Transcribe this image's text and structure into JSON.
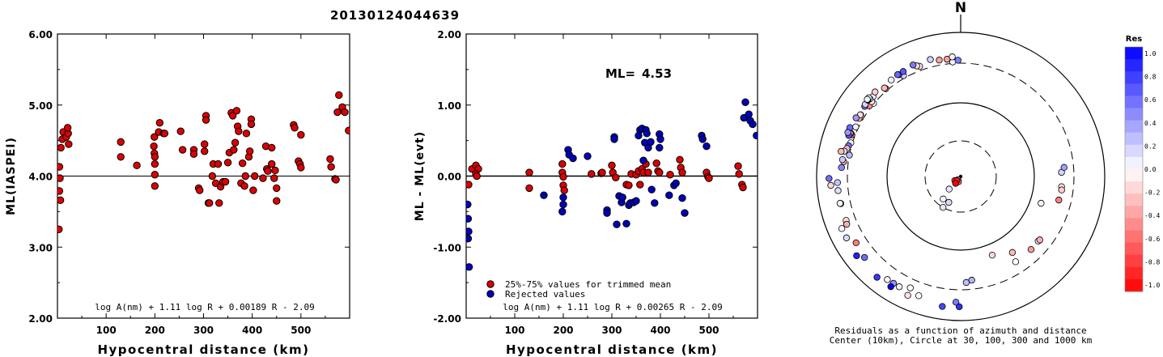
{
  "title": "20130124044639",
  "chart_data": [
    {
      "type": "scatter",
      "xlabel": "Hypocentral distance (km)",
      "ylabel": "ML(IASPEI)",
      "xlim": [
        0,
        600
      ],
      "ylim": [
        2.0,
        6.0
      ],
      "xticks": [
        "100",
        "200",
        "300",
        "400",
        "500"
      ],
      "yticks": [
        "2.00",
        "3.00",
        "4.00",
        "5.00",
        "6.00"
      ],
      "formula": "log A(nm) + 1.11 log R + 0.00189 R - 2.09",
      "series": [
        {
          "color": "#dd0000",
          "points": [
            [
              3,
              3.25
            ],
            [
              4,
              4.13
            ],
            [
              5,
              3.97
            ],
            [
              4,
              3.79
            ],
            [
              6,
              3.66
            ],
            [
              7,
              4.4
            ],
            [
              10,
              4.52
            ],
            [
              12,
              4.62
            ],
            [
              18,
              4.55
            ],
            [
              22,
              4.6
            ],
            [
              21,
              4.68
            ],
            [
              23,
              4.45
            ],
            [
              130,
              4.48
            ],
            [
              130,
              4.27
            ],
            [
              163,
              4.15
            ],
            [
              199,
              4.55
            ],
            [
              198,
              4.42
            ],
            [
              199,
              4.32
            ],
            [
              200,
              4.27
            ],
            [
              200,
              4.17
            ],
            [
              200,
              4.02
            ],
            [
              200,
              3.86
            ],
            [
              208,
              4.62
            ],
            [
              210,
              4.75
            ],
            [
              218,
              4.6
            ],
            [
              220,
              4.6
            ],
            [
              253,
              4.63
            ],
            [
              257,
              4.37
            ],
            [
              280,
              4.37
            ],
            [
              280,
              4.31
            ],
            [
              290,
              3.83
            ],
            [
              292,
              3.8
            ],
            [
              302,
              4.45
            ],
            [
              302,
              4.35
            ],
            [
              305,
              4.85
            ],
            [
              305,
              4.79
            ],
            [
              310,
              3.62
            ],
            [
              312,
              3.62
            ],
            [
              318,
              4.0
            ],
            [
              320,
              4.17
            ],
            [
              325,
              3.9
            ],
            [
              330,
              4.17
            ],
            [
              332,
              3.62
            ],
            [
              335,
              3.85
            ],
            [
              340,
              3.92
            ],
            [
              345,
              3.92
            ],
            [
              350,
              4.19
            ],
            [
              353,
              4.33
            ],
            [
              357,
              4.89
            ],
            [
              360,
              4.85
            ],
            [
              362,
              4.37
            ],
            [
              365,
              4.47
            ],
            [
              368,
              4.92
            ],
            [
              370,
              4.7
            ],
            [
              372,
              4.63
            ],
            [
              377,
              3.9
            ],
            [
              380,
              4.18
            ],
            [
              384,
              3.86
            ],
            [
              386,
              4.0
            ],
            [
              388,
              4.6
            ],
            [
              393,
              4.27
            ],
            [
              395,
              4.35
            ],
            [
              398,
              4.8
            ],
            [
              398,
              4.73
            ],
            [
              402,
              3.8
            ],
            [
              405,
              4.0
            ],
            [
              422,
              3.97
            ],
            [
              428,
              4.42
            ],
            [
              430,
              4.1
            ],
            [
              432,
              4.07
            ],
            [
              440,
              4.17
            ],
            [
              440,
              4.4
            ],
            [
              445,
              3.97
            ],
            [
              447,
              4.08
            ],
            [
              450,
              3.83
            ],
            [
              450,
              3.65
            ],
            [
              485,
              4.72
            ],
            [
              487,
              4.68
            ],
            [
              495,
              4.21
            ],
            [
              498,
              4.17
            ],
            [
              500,
              4.12
            ],
            [
              500,
              4.58
            ],
            [
              560,
              4.24
            ],
            [
              562,
              4.13
            ],
            [
              570,
              3.96
            ],
            [
              572,
              3.95
            ],
            [
              575,
              4.9
            ],
            [
              578,
              5.14
            ],
            [
              585,
              4.97
            ],
            [
              590,
              4.9
            ],
            [
              598,
              4.64
            ]
          ]
        }
      ]
    },
    {
      "type": "scatter",
      "xlabel": "Hypocentral distance (km)",
      "ylabel": "ML - ML(evt)",
      "xlim": [
        0,
        600
      ],
      "ylim": [
        -2.0,
        2.0
      ],
      "xticks": [
        "100",
        "200",
        "300",
        "400",
        "500"
      ],
      "yticks": [
        "-2.00",
        "-1.00",
        "0.00",
        "1.00",
        "2.00"
      ],
      "ml_label": "ML=",
      "ml_value": "4.53",
      "formula": "log A(nm) + 1.11 log R + 0.00265 R - 2.09",
      "legend": [
        {
          "label": "25%-75% values for trimmed mean",
          "color": "#dd0000"
        },
        {
          "label": "Rejected values",
          "color": "#0000bb"
        }
      ],
      "series": [
        {
          "color": "#dd0000",
          "points": [
            [
              5,
              -0.12
            ],
            [
              12,
              0.1
            ],
            [
              20,
              0.15
            ],
            [
              25,
              0.1
            ],
            [
              20,
              0.03
            ],
            [
              22,
              0.0
            ],
            [
              130,
              0.05
            ],
            [
              130,
              -0.17
            ],
            [
              198,
              0.17
            ],
            [
              198,
              0.05
            ],
            [
              200,
              -0.01
            ],
            [
              200,
              -0.13
            ],
            [
              202,
              -0.2
            ],
            [
              258,
              0.03
            ],
            [
              278,
              0.04
            ],
            [
              280,
              0.05
            ],
            [
              300,
              0.15
            ],
            [
              302,
              0.05
            ],
            [
              308,
              -0.02
            ],
            [
              330,
              -0.12
            ],
            [
              335,
              -0.13
            ],
            [
              340,
              0.03
            ],
            [
              350,
              0.02
            ],
            [
              355,
              0.07
            ],
            [
              358,
              -0.12
            ],
            [
              362,
              0.1
            ],
            [
              365,
              0.05
            ],
            [
              370,
              0.17
            ],
            [
              375,
              0.05
            ],
            [
              392,
              0.18
            ],
            [
              395,
              0.07
            ],
            [
              398,
              0.05
            ],
            [
              420,
              0.02
            ],
            [
              440,
              0.23
            ],
            [
              442,
              0.12
            ],
            [
              445,
              0.05
            ],
            [
              495,
              0.05
            ],
            [
              498,
              -0.01
            ],
            [
              500,
              -0.03
            ],
            [
              560,
              0.14
            ],
            [
              562,
              0.03
            ],
            [
              568,
              -0.12
            ],
            [
              570,
              -0.16
            ]
          ]
        },
        {
          "color": "#0000bb",
          "points": [
            [
              3,
              -0.4
            ],
            [
              4,
              -0.6
            ],
            [
              5,
              -0.78
            ],
            [
              4,
              -0.88
            ],
            [
              6,
              -1.28
            ],
            [
              160,
              -0.27
            ],
            [
              198,
              -0.5
            ],
            [
              200,
              -0.4
            ],
            [
              200,
              -0.3
            ],
            [
              210,
              0.37
            ],
            [
              212,
              0.3
            ],
            [
              220,
              0.25
            ],
            [
              250,
              0.28
            ],
            [
              290,
              -0.48
            ],
            [
              290,
              -0.52
            ],
            [
              305,
              0.55
            ],
            [
              305,
              0.52
            ],
            [
              310,
              -0.68
            ],
            [
              315,
              -0.28
            ],
            [
              320,
              -0.37
            ],
            [
              322,
              -0.3
            ],
            [
              330,
              -0.67
            ],
            [
              335,
              -0.41
            ],
            [
              338,
              -0.38
            ],
            [
              345,
              -0.37
            ],
            [
              350,
              -0.35
            ],
            [
              355,
              0.57
            ],
            [
              358,
              0.65
            ],
            [
              362,
              0.67
            ],
            [
              365,
              0.22
            ],
            [
              368,
              0.47
            ],
            [
              370,
              0.65
            ],
            [
              372,
              0.6
            ],
            [
              375,
              0.4
            ],
            [
              380,
              0.48
            ],
            [
              382,
              -0.19
            ],
            [
              388,
              -0.38
            ],
            [
              398,
              0.59
            ],
            [
              398,
              0.4
            ],
            [
              400,
              0.52
            ],
            [
              418,
              -0.27
            ],
            [
              428,
              -0.13
            ],
            [
              432,
              -0.1
            ],
            [
              445,
              -0.31
            ],
            [
              450,
              -0.52
            ],
            [
              485,
              0.57
            ],
            [
              487,
              0.52
            ],
            [
              495,
              0.42
            ],
            [
              572,
              0.82
            ],
            [
              575,
              1.04
            ],
            [
              582,
              0.87
            ],
            [
              585,
              0.78
            ],
            [
              590,
              0.73
            ],
            [
              598,
              0.57
            ]
          ]
        }
      ]
    },
    {
      "type": "polar-scatter",
      "north_label": "N",
      "caption_line1": "Residuals as a function of azimuth and distance",
      "caption_line2": "Center (10km), Circle at 30, 100, 300 and 1000 km",
      "colorbar_title": "Res",
      "colorbar_ticks": [
        "1.0",
        "0.8",
        "0.6",
        "0.4",
        "0.2",
        "0.0",
        "-0.2",
        "-0.4",
        "-0.6",
        "-0.8",
        "-1.0"
      ],
      "colorbar_range": [
        -1.0,
        1.0
      ],
      "stations": [
        [
          5,
          -0.12
        ],
        [
          12,
          0.1
        ],
        [
          20,
          0.15
        ],
        [
          25,
          0.1
        ],
        [
          20,
          0.03
        ],
        [
          3,
          -0.4
        ],
        [
          4,
          -0.6
        ],
        [
          5,
          -0.78
        ],
        [
          4,
          -0.88
        ],
        [
          6,
          -1.28
        ],
        [
          130,
          0.05
        ],
        [
          130,
          -0.17
        ],
        [
          160,
          -0.27
        ],
        [
          198,
          0.17
        ],
        [
          198,
          0.05
        ],
        [
          198,
          -0.5
        ],
        [
          200,
          -0.01
        ],
        [
          200,
          -0.13
        ],
        [
          200,
          -0.4
        ],
        [
          200,
          -0.3
        ],
        [
          202,
          -0.2
        ],
        [
          210,
          0.37
        ],
        [
          212,
          0.3
        ],
        [
          220,
          0.25
        ],
        [
          250,
          0.28
        ],
        [
          258,
          0.03
        ],
        [
          278,
          0.04
        ],
        [
          280,
          0.05
        ],
        [
          290,
          -0.48
        ],
        [
          290,
          -0.52
        ],
        [
          300,
          0.15
        ],
        [
          302,
          0.05
        ],
        [
          305,
          0.55
        ],
        [
          305,
          0.52
        ],
        [
          308,
          -0.02
        ],
        [
          310,
          -0.68
        ],
        [
          315,
          -0.28
        ],
        [
          320,
          -0.37
        ],
        [
          322,
          -0.3
        ],
        [
          330,
          -0.12
        ],
        [
          330,
          -0.67
        ],
        [
          335,
          -0.13
        ],
        [
          335,
          -0.41
        ],
        [
          338,
          -0.38
        ],
        [
          340,
          0.03
        ],
        [
          345,
          -0.37
        ],
        [
          350,
          0.02
        ],
        [
          350,
          -0.35
        ],
        [
          355,
          0.07
        ],
        [
          355,
          0.57
        ],
        [
          358,
          -0.12
        ],
        [
          358,
          0.65
        ],
        [
          362,
          0.1
        ],
        [
          362,
          0.67
        ],
        [
          365,
          0.05
        ],
        [
          365,
          0.22
        ],
        [
          368,
          0.47
        ],
        [
          370,
          0.17
        ],
        [
          370,
          0.65
        ],
        [
          372,
          0.6
        ],
        [
          375,
          0.05
        ],
        [
          375,
          0.4
        ],
        [
          380,
          0.48
        ],
        [
          382,
          -0.19
        ],
        [
          388,
          -0.38
        ],
        [
          392,
          0.18
        ],
        [
          395,
          0.07
        ],
        [
          398,
          0.05
        ],
        [
          398,
          0.59
        ],
        [
          398,
          0.4
        ],
        [
          400,
          0.52
        ],
        [
          418,
          -0.27
        ],
        [
          420,
          0.02
        ],
        [
          428,
          -0.13
        ],
        [
          432,
          -0.1
        ],
        [
          440,
          0.23
        ],
        [
          442,
          0.12
        ],
        [
          445,
          0.05
        ],
        [
          445,
          -0.31
        ],
        [
          450,
          -0.52
        ],
        [
          485,
          0.57
        ],
        [
          487,
          0.52
        ],
        [
          495,
          0.05
        ],
        [
          495,
          0.42
        ],
        [
          498,
          -0.01
        ],
        [
          500,
          -0.03
        ],
        [
          560,
          0.14
        ],
        [
          562,
          0.03
        ],
        [
          568,
          -0.12
        ],
        [
          570,
          -0.16
        ],
        [
          572,
          0.82
        ],
        [
          575,
          1.04
        ],
        [
          582,
          0.87
        ],
        [
          585,
          0.78
        ],
        [
          590,
          0.73
        ],
        [
          598,
          0.57
        ]
      ]
    }
  ]
}
